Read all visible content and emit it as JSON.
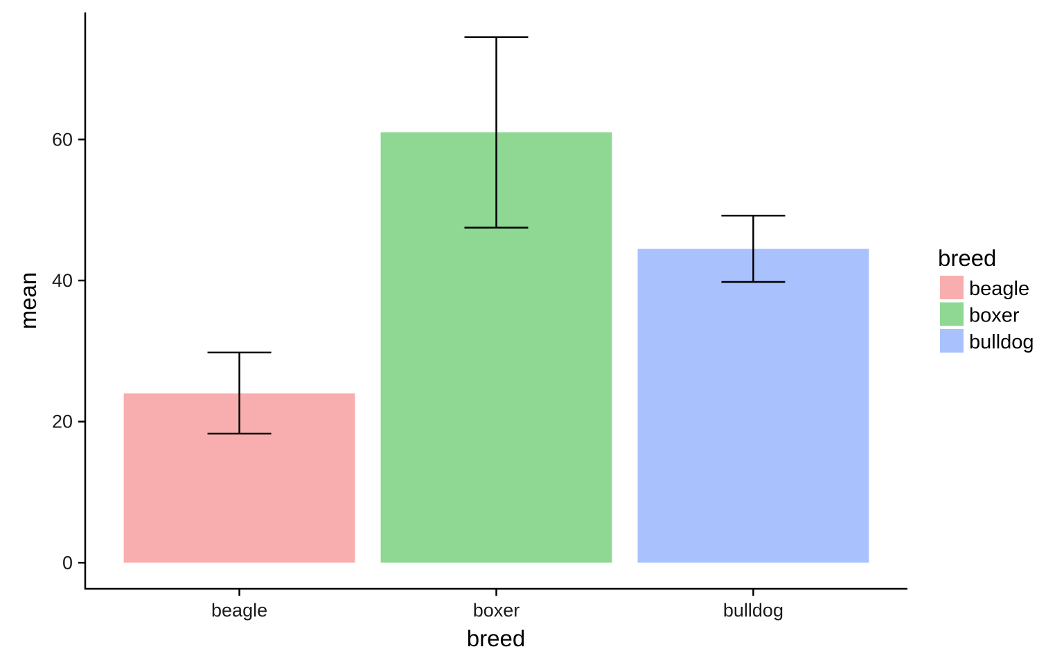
{
  "chart_data": {
    "type": "bar",
    "categories": [
      "beagle",
      "boxer",
      "bulldog"
    ],
    "values": [
      24,
      61,
      44.5
    ],
    "error_bars": {
      "lower": [
        18.3,
        47.5,
        39.8
      ],
      "upper": [
        29.8,
        74.5,
        49.2
      ]
    },
    "colors": [
      "#F8AEAE",
      "#8ED893",
      "#A9C2FD"
    ],
    "xlabel": "breed",
    "ylabel": "mean",
    "yticks": [
      0,
      20,
      40,
      60
    ],
    "ylim": [
      -3.7,
      78
    ],
    "legend": {
      "title": "breed",
      "position": "right",
      "entries": [
        "beagle",
        "boxer",
        "bulldog"
      ]
    },
    "grid": false
  }
}
